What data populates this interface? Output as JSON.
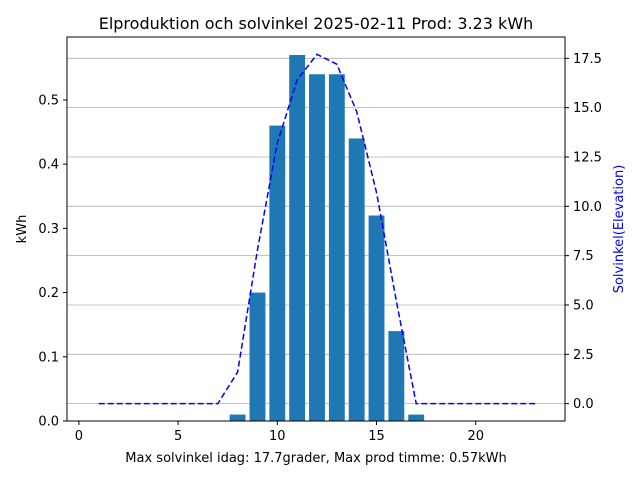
{
  "chart_data": {
    "type": "bar",
    "title": "Elproduktion och solvinkel 2025-02-11 Prod: 3.23 kWh",
    "xlabel": "Max solvinkel idag: 17.7grader, Max prod timme: 0.57kWh",
    "ylabel": "kWh",
    "ylabel_right": "Solvinkel(Elevation)",
    "xlim": [
      -0.6,
      24.5
    ],
    "ylim": [
      0,
      0.598
    ],
    "ylim_right": [
      -0.88,
      18.58
    ],
    "x_ticks": [
      0,
      5,
      10,
      15,
      20
    ],
    "x_tick_labels": [
      "0",
      "5",
      "10",
      "15",
      "20"
    ],
    "y_ticks": [
      0.0,
      0.1,
      0.2,
      0.3,
      0.4,
      0.5
    ],
    "y_tick_labels": [
      "0.0",
      "0.1",
      "0.2",
      "0.3",
      "0.4",
      "0.5"
    ],
    "y_right_ticks": [
      0.0,
      2.5,
      5.0,
      7.5,
      10.0,
      12.5,
      15.0,
      17.5
    ],
    "y_right_tick_labels": [
      "0.0",
      "2.5",
      "5.0",
      "7.5",
      "10.0",
      "12.5",
      "15.0",
      "17.5"
    ],
    "grid": "horizontal lines on right axis",
    "series": [
      {
        "kind": "bar",
        "axis": "left",
        "color": "#1f77b4",
        "x": [
          8,
          9,
          10,
          11,
          12,
          13,
          14,
          15,
          16,
          17
        ],
        "values": [
          0.01,
          0.2,
          0.46,
          0.57,
          0.54,
          0.54,
          0.44,
          0.32,
          0.14,
          0.01
        ]
      },
      {
        "kind": "line",
        "axis": "right",
        "color": "#0000ff",
        "style": "dashed",
        "x": [
          1,
          2,
          3,
          4,
          5,
          6,
          7,
          8,
          9,
          10,
          11,
          12,
          13,
          14,
          15,
          16,
          17,
          18,
          19,
          20,
          21,
          22,
          23
        ],
        "values": [
          0,
          0,
          0,
          0,
          0,
          0,
          0,
          1.6,
          7.8,
          13.2,
          16.4,
          17.7,
          17.2,
          14.8,
          10.7,
          5.2,
          0,
          0,
          0,
          0,
          0,
          0,
          0
        ]
      }
    ]
  }
}
